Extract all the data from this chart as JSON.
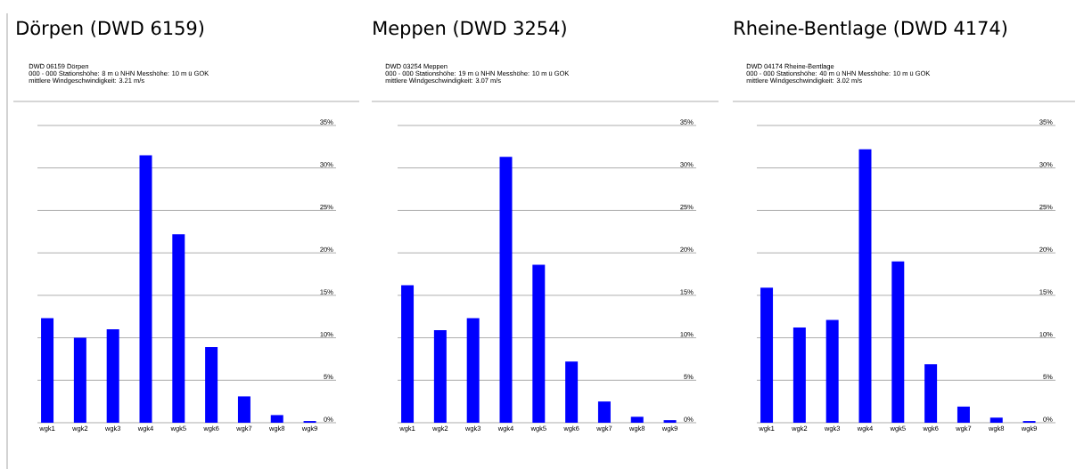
{
  "chart_data": [
    {
      "type": "bar",
      "title": "Dörpen (DWD 6159)",
      "subtitle": "DWD 06159   Dörpen",
      "annotations": [
        "000 - 000    Stationshöhe: 8 m ü NHN  Messhöhe: 10 m ü GOK",
        "mittlere Windgeschwindigkeit: 3.21 m/s"
      ],
      "categories": [
        "wgk1",
        "wgk2",
        "wgk3",
        "wgk4",
        "wgk5",
        "wgk6",
        "wgk7",
        "wgk8",
        "wgk9"
      ],
      "values": [
        12.3,
        10.0,
        11.0,
        31.5,
        22.2,
        8.9,
        3.1,
        0.9,
        0.2
      ],
      "color": "#0000ff",
      "ylim": [
        0,
        35
      ],
      "yticks": [
        {
          "value": 0,
          "label": "0%"
        },
        {
          "value": 5,
          "label": "5%"
        },
        {
          "value": 10,
          "label": "10%"
        },
        {
          "value": 15,
          "label": "15%"
        },
        {
          "value": 20,
          "label": "20%"
        },
        {
          "value": 25,
          "label": "25%"
        },
        {
          "value": 30,
          "label": "30%"
        },
        {
          "value": 35,
          "label": "35%"
        }
      ],
      "grid": "y"
    },
    {
      "type": "bar",
      "title": "Meppen (DWD 3254)",
      "subtitle": "DWD 03254   Meppen",
      "annotations": [
        "000 - 000    Stationshöhe: 19 m ü NHN  Messhöhe: 10 m ü GOK",
        "mittlere Windgeschwindigkeit: 3.07 m/s"
      ],
      "categories": [
        "wgk1",
        "wgk2",
        "wgk3",
        "wgk4",
        "wgk5",
        "wgk6",
        "wgk7",
        "wgk8",
        "wgk9"
      ],
      "values": [
        16.2,
        10.9,
        12.3,
        31.3,
        18.6,
        7.2,
        2.5,
        0.7,
        0.3
      ],
      "color": "#0000ff",
      "ylim": [
        0,
        35
      ],
      "yticks": [
        {
          "value": 0,
          "label": "0%"
        },
        {
          "value": 5,
          "label": "5%"
        },
        {
          "value": 10,
          "label": "10%"
        },
        {
          "value": 15,
          "label": "15%"
        },
        {
          "value": 20,
          "label": "20%"
        },
        {
          "value": 25,
          "label": "25%"
        },
        {
          "value": 30,
          "label": "30%"
        },
        {
          "value": 35,
          "label": "35%"
        }
      ],
      "grid": "y"
    },
    {
      "type": "bar",
      "title": "Rheine-Bentlage (DWD 4174)",
      "subtitle": "DWD 04174   Rheine-Bentlage",
      "annotations": [
        "000 - 000    Stationshöhe: 40 m ü NHN  Messhöhe: 10 m ü GOK",
        "mittlere Windgeschwindigkeit: 3.02 m/s"
      ],
      "categories": [
        "wgk1",
        "wgk2",
        "wgk3",
        "wgk4",
        "wgk5",
        "wgk6",
        "wgk7",
        "wgk8",
        "wgk9"
      ],
      "values": [
        15.9,
        11.2,
        12.1,
        32.2,
        19.0,
        6.9,
        1.9,
        0.6,
        0.2
      ],
      "color": "#0000ff",
      "ylim": [
        0,
        35
      ],
      "yticks": [
        {
          "value": 0,
          "label": "0%"
        },
        {
          "value": 5,
          "label": "5%"
        },
        {
          "value": 10,
          "label": "10%"
        },
        {
          "value": 15,
          "label": "15%"
        },
        {
          "value": 20,
          "label": "20%"
        },
        {
          "value": 25,
          "label": "25%"
        },
        {
          "value": 30,
          "label": "30%"
        },
        {
          "value": 35,
          "label": "35%"
        }
      ],
      "grid": "y"
    }
  ]
}
